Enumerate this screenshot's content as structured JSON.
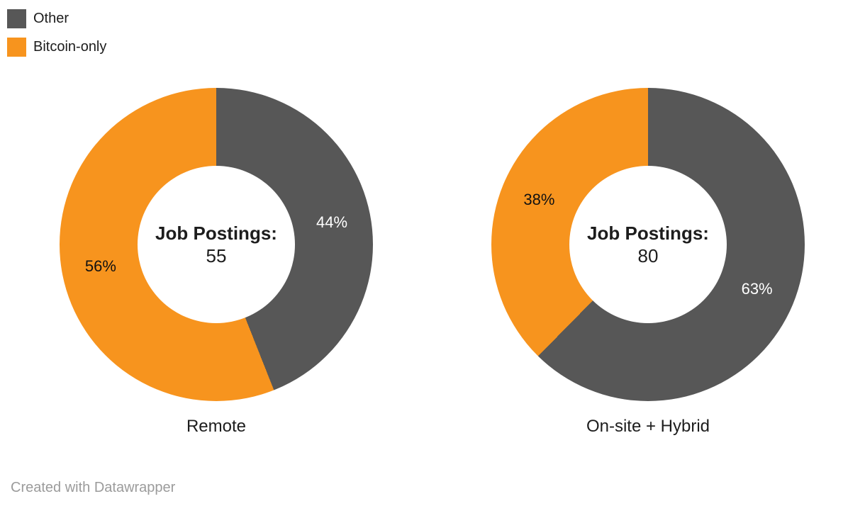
{
  "page": {
    "background": "#ffffff",
    "footer": "Created with Datawrapper"
  },
  "legend": {
    "position": "top-left",
    "items": [
      {
        "label": "Other",
        "color": "#575757"
      },
      {
        "label": "Bitcoin-only",
        "color": "#F7941E"
      }
    ]
  },
  "chart_data": [
    {
      "type": "pie",
      "subtype": "donut",
      "title": "Remote",
      "center_label": "Job Postings:",
      "center_value": "55",
      "total": 55,
      "start_angle_deg": 0,
      "direction": "clockwise",
      "slices": [
        {
          "name": "Other",
          "pct": 44,
          "label": "44%",
          "color": "#575757",
          "label_color": "#ffffff"
        },
        {
          "name": "Bitcoin-only",
          "pct": 56,
          "label": "56%",
          "color": "#F7941E",
          "label_color": "#111111"
        }
      ]
    },
    {
      "type": "pie",
      "subtype": "donut",
      "title": "On-site + Hybrid",
      "center_label": "Job Postings:",
      "center_value": "80",
      "total": 80,
      "start_angle_deg": 0,
      "direction": "clockwise",
      "slices": [
        {
          "name": "Other",
          "pct": 63,
          "label": "63%",
          "color": "#575757",
          "label_color": "#ffffff"
        },
        {
          "name": "Bitcoin-only",
          "pct": 38,
          "label": "38%",
          "color": "#F7941E",
          "label_color": "#111111"
        }
      ]
    }
  ]
}
